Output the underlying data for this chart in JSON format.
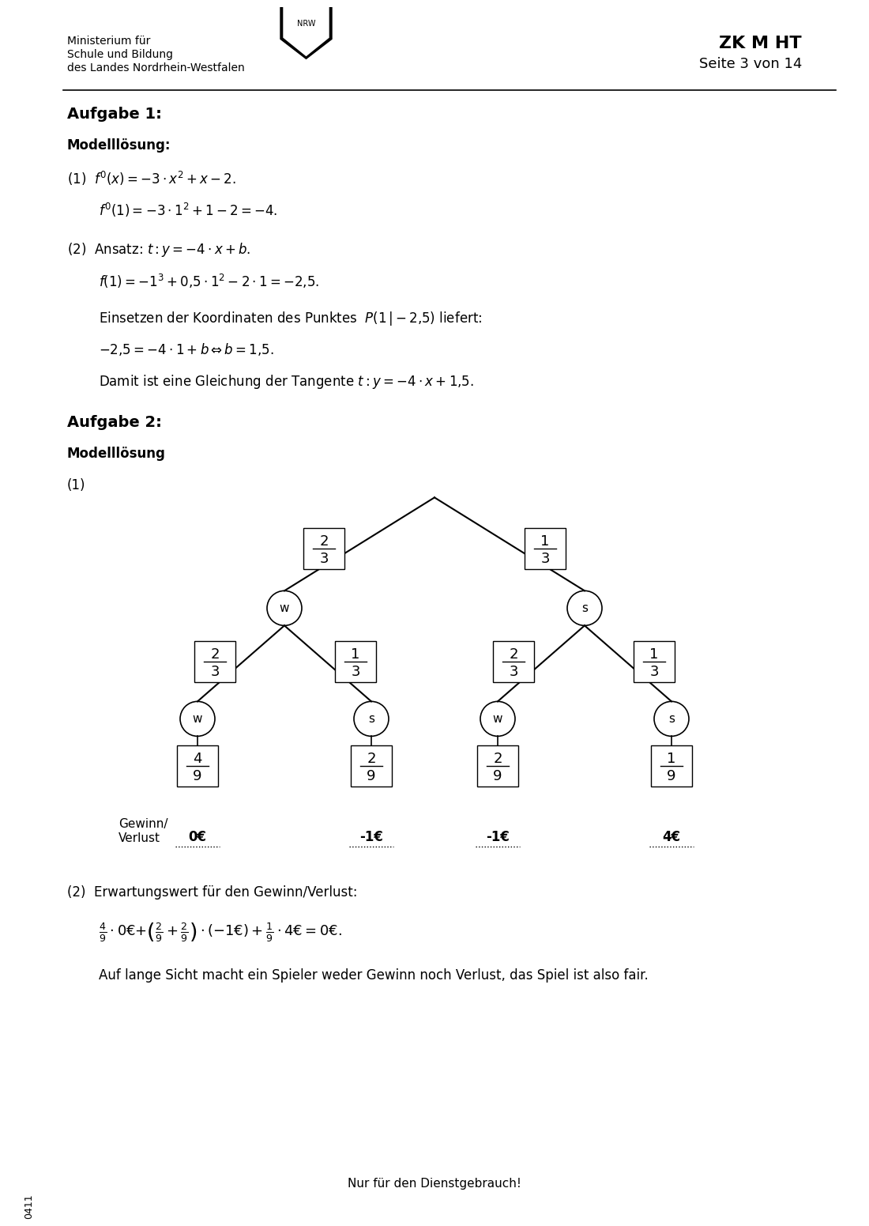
{
  "header_left": [
    "Ministerium für",
    "Schule und Bildung",
    "des Landes Nordrhein-Westfalen"
  ],
  "header_right_line1": "ZK M HT",
  "header_right_line2": "Seite 3 von 14",
  "aufgabe1_title": "Aufgabe 1:",
  "modell1_title": "Modelllösung:",
  "line1a": "(1)  $f\\prime(x)=-3\\cdot x^2+x-2$.",
  "line1b": "$f\\prime(1)=-3\\cdot 1^2+1-2=-4$.",
  "line2a": "(2)  Ansatz: $t: y=-4\\cdot x+b$.",
  "line2b": "$f(1)=-1^3+0{,}5\\cdot 1^2-2\\cdot 1=-2{,}5$.",
  "line2c": "Einsetzen der Koordinaten des Punktes  $P(1\\,|-2{,}5)$ liefert:",
  "line2d": "$-2{,}5=-4\\cdot 1+b \\Leftrightarrow b=1{,}5$.",
  "line2e": "Damit ist eine Gleichung der Tangente $t: y=-4\\cdot x+1{,}5$.",
  "aufgabe2_title": "Aufgabe 2:",
  "modell2_title": "Modelllösung",
  "tree_label1": "(1)",
  "bottom_text1": "Gewinn/",
  "bottom_text2": "Verlust",
  "bottom_values": [
    "0€",
    "-1€",
    "-1€",
    "4€"
  ],
  "eq_line1": "$\\frac{4}{9}\\cdot 0€+\\left(\\frac{2}{9}+\\frac{2}{9}\\right)\\cdot(-1€)+\\frac{1}{9}\\cdot 4€=0€$.",
  "eq_line2": "Auf lange Sicht macht ein Spieler weder Gewinn noch Verlust, das Spiel ist also fair.",
  "footer": "Nur für den Dienstgebrauch!",
  "sidenote": "0411",
  "bg_color": "#ffffff",
  "text_color": "#000000"
}
